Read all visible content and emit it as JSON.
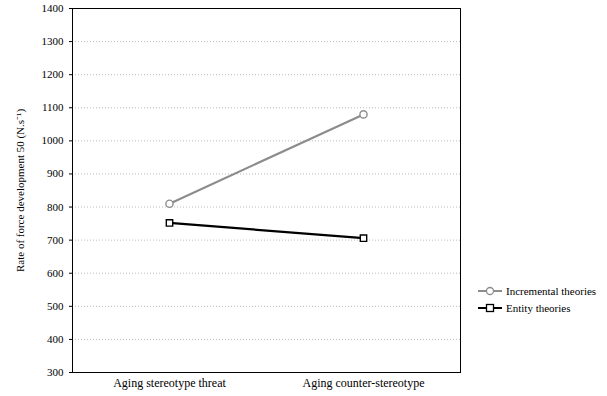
{
  "chart_data": {
    "type": "line",
    "categories": [
      "Aging stereotype threat",
      "Aging counter-stereotype"
    ],
    "series": [
      {
        "name": "Incremental theories",
        "color": "#8c8c8c",
        "marker": "circle",
        "values": [
          810,
          1080
        ]
      },
      {
        "name": "Entity theories",
        "color": "#000000",
        "marker": "square",
        "values": [
          752,
          706
        ]
      }
    ],
    "y_label": "Rate of force development 50 (N.s⁻¹)",
    "ylim": [
      300,
      1400
    ],
    "yticks": [
      300,
      400,
      500,
      600,
      700,
      800,
      900,
      1000,
      1100,
      1200,
      1300,
      1400
    ],
    "grid": true,
    "legend": "lower right"
  }
}
